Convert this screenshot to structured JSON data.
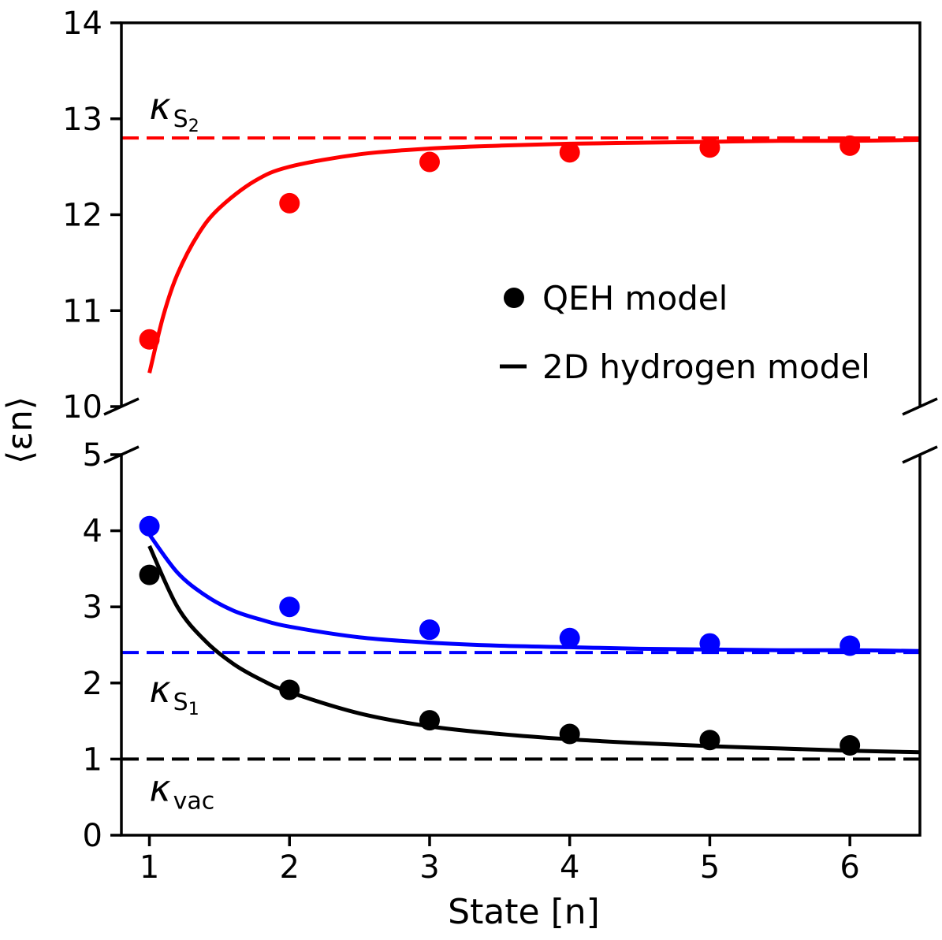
{
  "chart_data": {
    "type": "scatter",
    "subtype": "broken-y-axis scatter with fitted lines",
    "xlabel": "State [n]",
    "ylabel": "⟨εn⟩",
    "xlim": [
      0.8,
      6.5
    ],
    "x_ticks": [
      1,
      2,
      3,
      4,
      5,
      6
    ],
    "panels": [
      {
        "name": "upper",
        "ylim": [
          10,
          14
        ],
        "y_ticks": [
          10,
          11,
          12,
          13,
          14
        ]
      },
      {
        "name": "lower",
        "ylim": [
          0,
          5
        ],
        "y_ticks": [
          0,
          1,
          2,
          3,
          4,
          5
        ]
      }
    ],
    "series": [
      {
        "name": "S2 QEH",
        "panel": "upper",
        "kind": "points",
        "color": "#ff0000",
        "x": [
          1,
          2,
          3,
          4,
          5,
          6
        ],
        "y": [
          10.7,
          12.12,
          12.55,
          12.65,
          12.7,
          12.72
        ]
      },
      {
        "name": "S1 QEH",
        "panel": "lower",
        "kind": "points",
        "color": "#0000ff",
        "x": [
          1,
          2,
          3,
          4,
          5,
          6
        ],
        "y": [
          4.06,
          3.0,
          2.7,
          2.59,
          2.52,
          2.49
        ]
      },
      {
        "name": "vac QEH",
        "panel": "lower",
        "kind": "points",
        "color": "#000000",
        "x": [
          1,
          2,
          3,
          4,
          5,
          6
        ],
        "y": [
          3.42,
          1.91,
          1.51,
          1.33,
          1.25,
          1.18
        ]
      },
      {
        "name": "S2 hydrogen",
        "panel": "upper",
        "kind": "line",
        "color": "#ff0000",
        "x": [
          1.0,
          1.1,
          1.2,
          1.35,
          1.5,
          1.75,
          2.0,
          2.5,
          3.0,
          3.5,
          4.0,
          4.5,
          5.0,
          5.5,
          6.0,
          6.5
        ],
        "y": [
          10.35,
          10.95,
          11.38,
          11.8,
          12.07,
          12.35,
          12.5,
          12.63,
          12.69,
          12.72,
          12.74,
          12.75,
          12.76,
          12.77,
          12.77,
          12.78
        ]
      },
      {
        "name": "S1 hydrogen",
        "panel": "lower",
        "kind": "line",
        "color": "#0000ff",
        "x": [
          1.0,
          1.2,
          1.4,
          1.6,
          1.8,
          2.0,
          2.5,
          3.0,
          3.5,
          4.0,
          4.5,
          5.0,
          5.5,
          6.0,
          6.5
        ],
        "y": [
          3.95,
          3.45,
          3.15,
          2.95,
          2.83,
          2.74,
          2.6,
          2.53,
          2.49,
          2.47,
          2.45,
          2.44,
          2.43,
          2.43,
          2.42
        ]
      },
      {
        "name": "vac hydrogen",
        "panel": "lower",
        "kind": "line",
        "color": "#000000",
        "x": [
          1.0,
          1.2,
          1.4,
          1.6,
          1.8,
          2.0,
          2.5,
          3.0,
          3.5,
          4.0,
          4.5,
          5.0,
          5.5,
          6.0,
          6.5
        ],
        "y": [
          3.8,
          3.0,
          2.55,
          2.25,
          2.04,
          1.88,
          1.6,
          1.43,
          1.33,
          1.26,
          1.21,
          1.17,
          1.14,
          1.11,
          1.09
        ]
      },
      {
        "name": "kappa S2",
        "panel": "upper",
        "kind": "hline",
        "color": "#ff0000",
        "y": 12.8
      },
      {
        "name": "kappa S1",
        "panel": "lower",
        "kind": "hline",
        "color": "#0000ff",
        "y": 2.4
      },
      {
        "name": "kappa vac",
        "panel": "lower",
        "kind": "hline",
        "color": "#000000",
        "y": 1.0
      }
    ],
    "annotations": [
      {
        "name": "kappa-s2",
        "panel": "upper",
        "x": 1.0,
        "y": 13.0,
        "symbol": "κ",
        "sub": "S",
        "subsub": "2"
      },
      {
        "name": "kappa-s1",
        "panel": "lower",
        "x": 1.0,
        "y": 1.75,
        "symbol": "κ",
        "sub": "S",
        "subsub": "1"
      },
      {
        "name": "kappa-vac",
        "panel": "lower",
        "x": 1.0,
        "y": 0.45,
        "symbol": "κ",
        "sub": "vac",
        "subsub": ""
      }
    ],
    "legend": {
      "placement": "center-right of upper panel",
      "entries": [
        {
          "marker": "point",
          "color": "#000000",
          "label": "QEH model"
        },
        {
          "marker": "line",
          "color": "#000000",
          "label": "2D hydrogen model"
        }
      ]
    }
  }
}
